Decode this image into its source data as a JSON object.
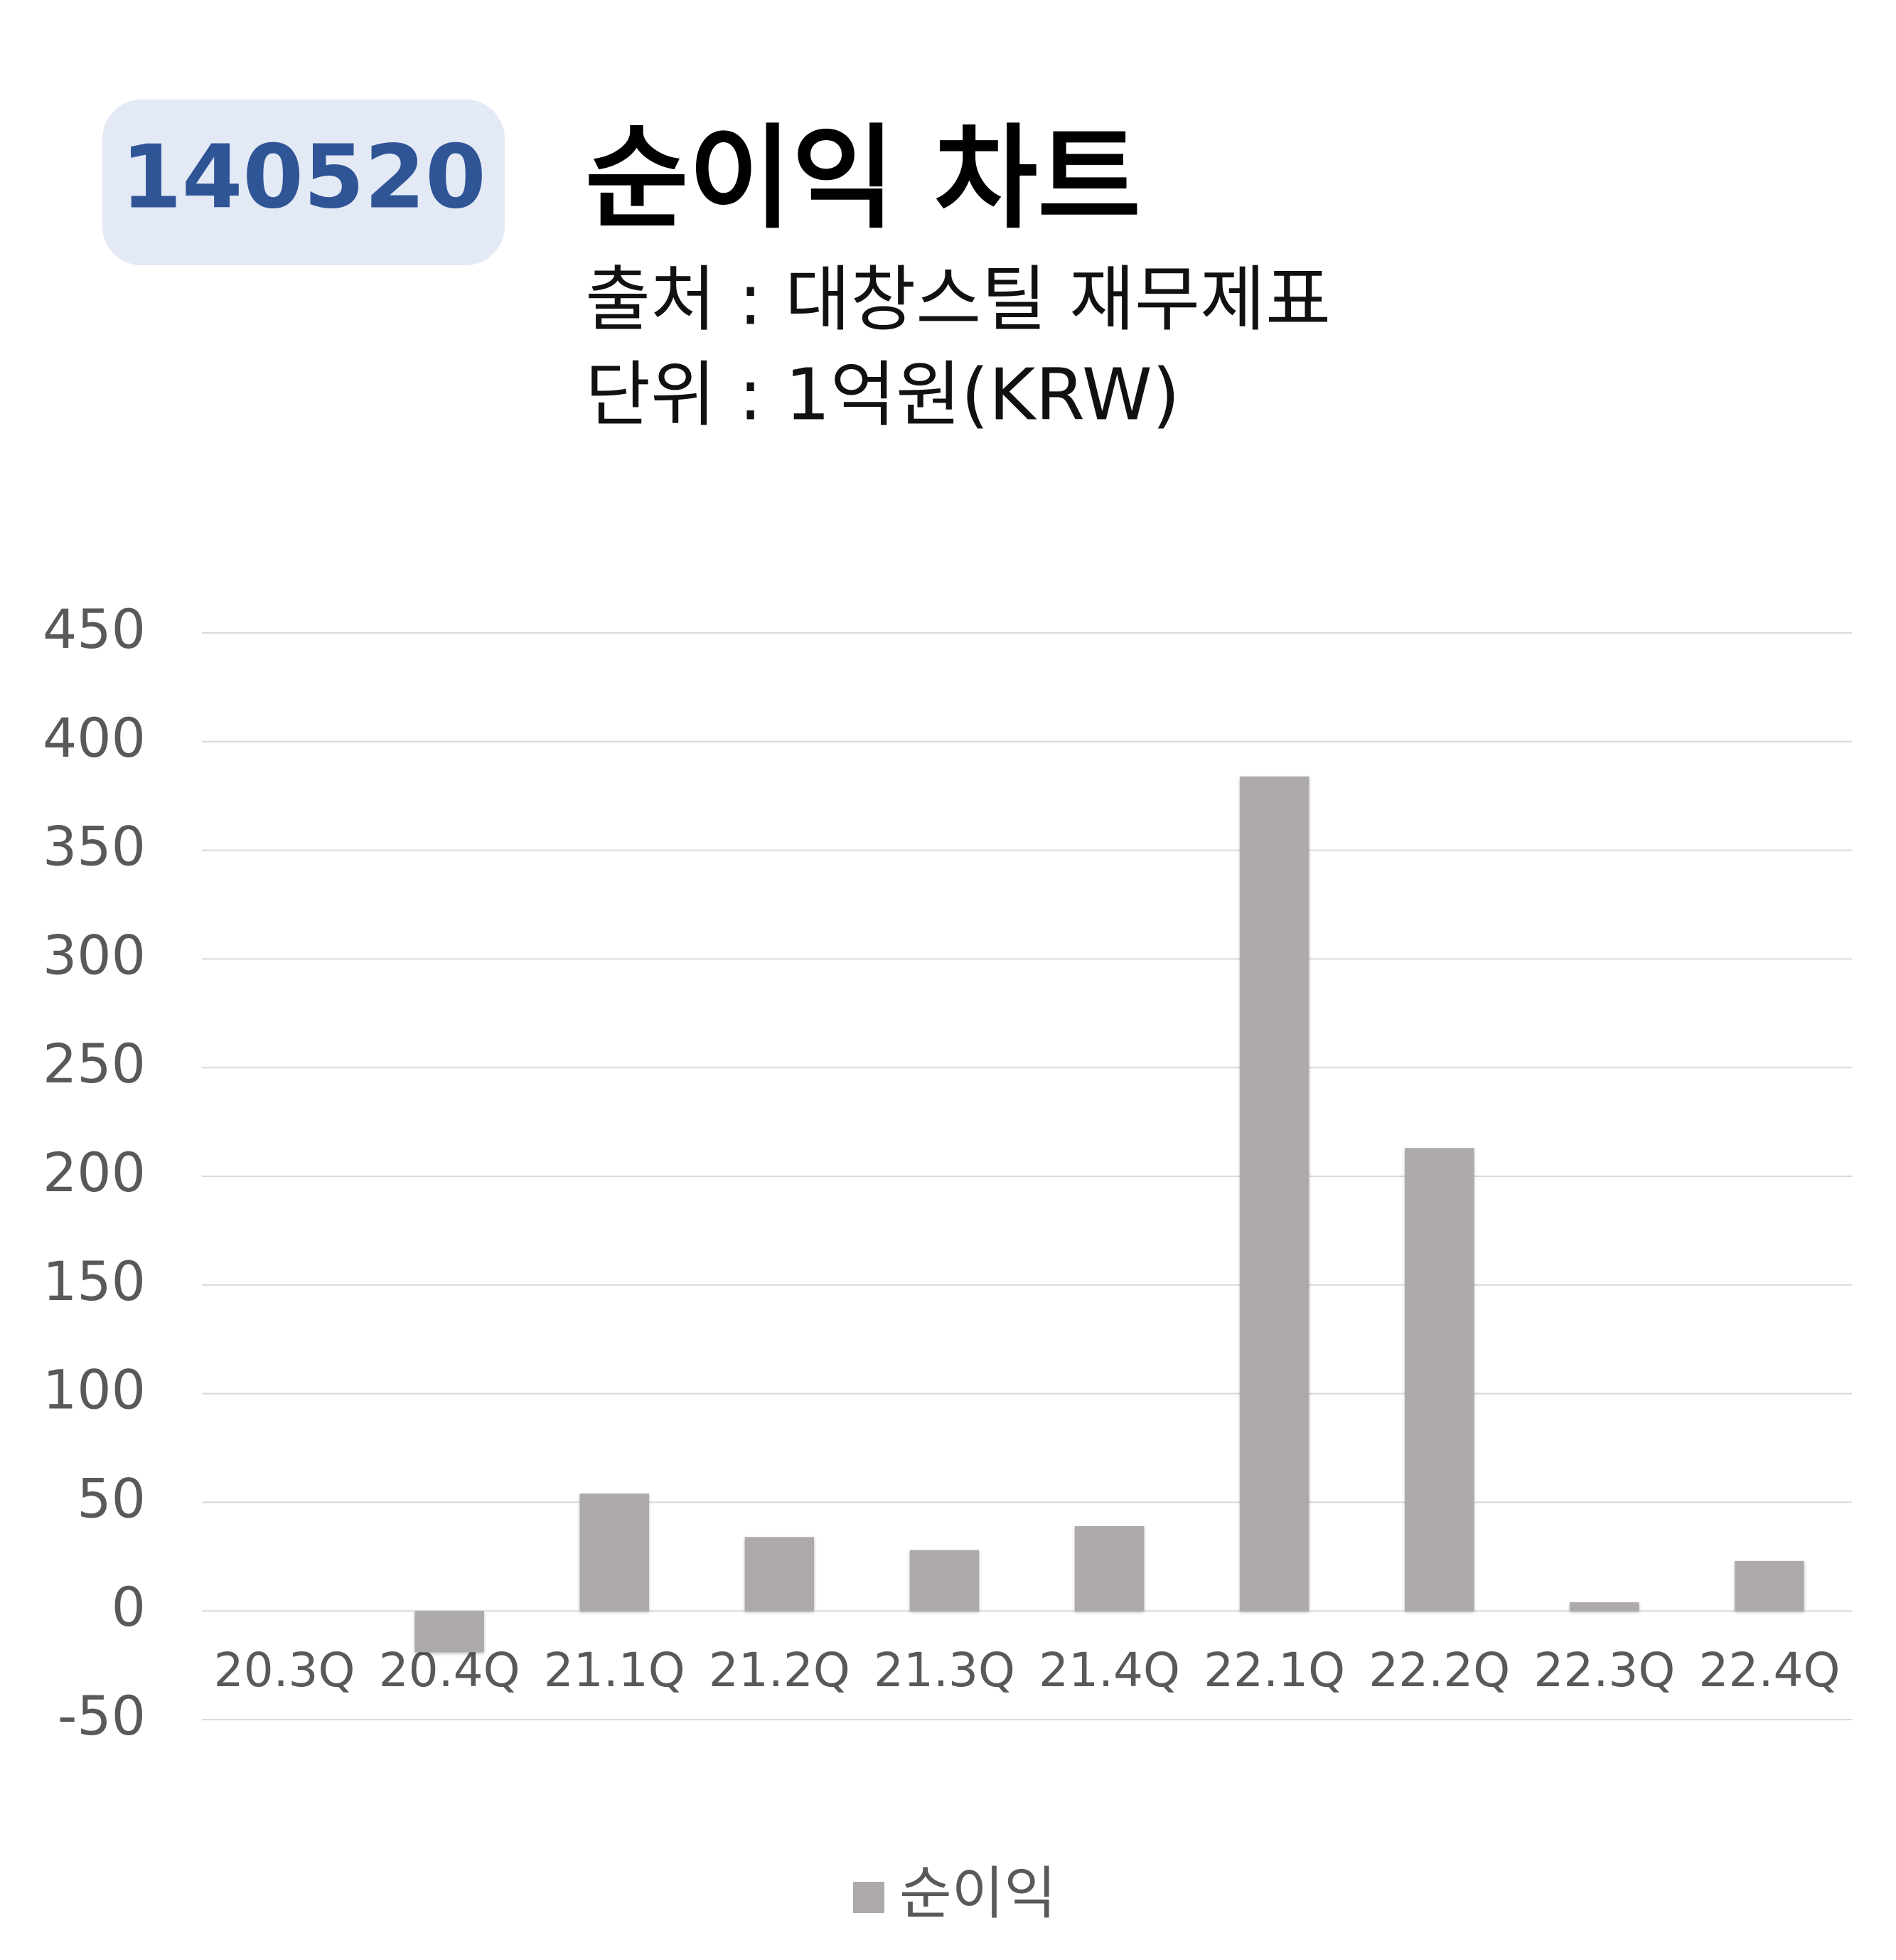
{
  "badge": "140520",
  "chart_data": {
    "type": "bar",
    "title": "순이익 차트",
    "subtitle": [
      "출처 : 대창스틸 재무제표",
      "단위 : 1억원(KRW)"
    ],
    "categories": [
      "20.3Q",
      "20.4Q",
      "21.1Q",
      "21.2Q",
      "21.3Q",
      "21.4Q",
      "22.1Q",
      "22.2Q",
      "22.3Q",
      "22.4Q"
    ],
    "series": [
      {
        "name": "순이익",
        "color": "#aeaaaa",
        "values": [
          0,
          -19,
          54,
          34,
          28,
          39,
          384,
          213,
          4,
          23
        ]
      }
    ],
    "ylim": [
      -50,
      450
    ],
    "yticks": [
      -50,
      0,
      50,
      100,
      150,
      200,
      250,
      300,
      350,
      400,
      450
    ],
    "grid": true,
    "legend": "bottom"
  }
}
